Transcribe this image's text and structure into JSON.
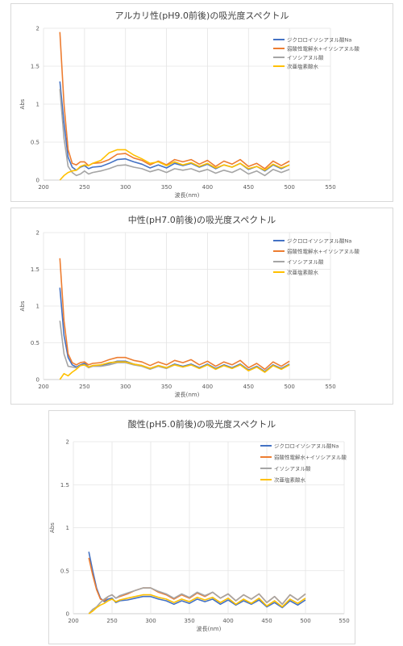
{
  "chart_data": [
    {
      "type": "line",
      "title": "アルカリ性(pH9.0前後)の吸光度スペクトル",
      "xlabel": "波長(nm)",
      "ylabel": "Abs",
      "xlim": [
        200,
        550
      ],
      "ylim": [
        0,
        2
      ],
      "xticks": [
        "200",
        "250",
        "300",
        "350",
        "400",
        "450",
        "500",
        "550"
      ],
      "yticks": [
        "0",
        "0.5",
        "1",
        "1.5",
        "2"
      ],
      "grid": true,
      "legend": "top-right",
      "series": [
        {
          "name": "ジクロロイソシアヌル酸Na",
          "color": "#4472C4",
          "x": [
            220,
            225,
            230,
            235,
            240,
            245,
            250,
            255,
            260,
            270,
            280,
            290,
            300,
            310,
            320,
            330,
            340,
            350,
            360,
            370,
            380,
            390,
            400,
            410,
            420,
            430,
            440,
            450,
            460,
            470,
            480,
            490,
            500
          ],
          "y": [
            1.3,
            0.75,
            0.3,
            0.17,
            0.13,
            0.17,
            0.19,
            0.15,
            0.17,
            0.18,
            0.22,
            0.27,
            0.28,
            0.24,
            0.21,
            0.16,
            0.2,
            0.16,
            0.22,
            0.19,
            0.22,
            0.17,
            0.21,
            0.15,
            0.2,
            0.17,
            0.22,
            0.14,
            0.18,
            0.12,
            0.2,
            0.15,
            0.2
          ]
        },
        {
          "name": "弱酸性電解水+イソシアヌル酸",
          "color": "#ED7D31",
          "x": [
            220,
            225,
            230,
            235,
            240,
            245,
            250,
            255,
            260,
            270,
            280,
            290,
            300,
            310,
            320,
            330,
            340,
            350,
            360,
            370,
            380,
            390,
            400,
            410,
            420,
            430,
            440,
            450,
            460,
            470,
            480,
            490,
            500
          ],
          "y": [
            1.95,
            1.0,
            0.4,
            0.22,
            0.2,
            0.24,
            0.24,
            0.19,
            0.22,
            0.23,
            0.27,
            0.34,
            0.35,
            0.29,
            0.26,
            0.2,
            0.25,
            0.2,
            0.27,
            0.24,
            0.27,
            0.21,
            0.26,
            0.18,
            0.25,
            0.21,
            0.27,
            0.18,
            0.22,
            0.15,
            0.25,
            0.19,
            0.25
          ]
        },
        {
          "name": "イソシアヌル酸",
          "color": "#A5A5A5",
          "x": [
            220,
            225,
            230,
            235,
            240,
            245,
            250,
            255,
            260,
            270,
            280,
            290,
            300,
            310,
            320,
            330,
            340,
            350,
            360,
            370,
            380,
            390,
            400,
            410,
            420,
            430,
            440,
            450,
            460,
            470,
            480,
            490,
            500
          ],
          "y": [
            1.2,
            0.55,
            0.18,
            0.1,
            0.06,
            0.08,
            0.12,
            0.08,
            0.1,
            0.12,
            0.15,
            0.19,
            0.2,
            0.17,
            0.15,
            0.11,
            0.14,
            0.1,
            0.15,
            0.13,
            0.15,
            0.11,
            0.14,
            0.09,
            0.13,
            0.1,
            0.15,
            0.08,
            0.12,
            0.06,
            0.14,
            0.1,
            0.14
          ]
        },
        {
          "name": "次亜塩素酸水",
          "color": "#FFC000",
          "x": [
            220,
            225,
            230,
            235,
            240,
            245,
            250,
            255,
            260,
            270,
            280,
            290,
            300,
            310,
            320,
            330,
            340,
            350,
            360,
            370,
            380,
            390,
            400,
            410,
            420,
            430,
            440,
            450,
            460,
            470,
            480,
            490,
            500
          ],
          "y": [
            0.0,
            0.06,
            0.1,
            0.12,
            0.13,
            0.18,
            0.2,
            0.19,
            0.22,
            0.26,
            0.36,
            0.4,
            0.4,
            0.33,
            0.28,
            0.22,
            0.24,
            0.19,
            0.24,
            0.2,
            0.23,
            0.18,
            0.22,
            0.16,
            0.2,
            0.17,
            0.22,
            0.15,
            0.18,
            0.13,
            0.21,
            0.16,
            0.2
          ]
        }
      ]
    },
    {
      "type": "line",
      "title": "中性(pH7.0前後)の吸光度スペクトル",
      "xlabel": "波長(nm)",
      "ylabel": "Abs",
      "xlim": [
        200,
        550
      ],
      "ylim": [
        0,
        2
      ],
      "xticks": [
        "200",
        "250",
        "300",
        "350",
        "400",
        "450",
        "500",
        "550"
      ],
      "yticks": [
        "0",
        "0.5",
        "1",
        "1.5",
        "2"
      ],
      "grid": true,
      "legend": "top-right",
      "series": [
        {
          "name": "ジクロロイソシアヌル酸Na",
          "color": "#4472C4",
          "x": [
            220,
            225,
            230,
            235,
            240,
            245,
            250,
            255,
            260,
            270,
            280,
            290,
            300,
            310,
            320,
            330,
            340,
            350,
            360,
            370,
            380,
            390,
            400,
            410,
            420,
            430,
            440,
            450,
            460,
            470,
            480,
            490,
            500
          ],
          "y": [
            1.25,
            0.6,
            0.3,
            0.2,
            0.17,
            0.2,
            0.22,
            0.17,
            0.19,
            0.19,
            0.22,
            0.25,
            0.25,
            0.21,
            0.19,
            0.15,
            0.19,
            0.16,
            0.21,
            0.18,
            0.21,
            0.16,
            0.21,
            0.15,
            0.2,
            0.16,
            0.21,
            0.13,
            0.18,
            0.11,
            0.2,
            0.15,
            0.21
          ]
        },
        {
          "name": "弱酸性電解水+イソシアヌル酸",
          "color": "#ED7D31",
          "x": [
            220,
            225,
            230,
            235,
            240,
            245,
            250,
            255,
            260,
            270,
            280,
            290,
            300,
            310,
            320,
            330,
            340,
            350,
            360,
            370,
            380,
            390,
            400,
            410,
            420,
            430,
            440,
            450,
            460,
            470,
            480,
            490,
            500
          ],
          "y": [
            1.65,
            0.8,
            0.35,
            0.23,
            0.2,
            0.23,
            0.24,
            0.2,
            0.22,
            0.23,
            0.27,
            0.3,
            0.3,
            0.26,
            0.24,
            0.19,
            0.24,
            0.2,
            0.26,
            0.23,
            0.27,
            0.2,
            0.25,
            0.18,
            0.24,
            0.2,
            0.26,
            0.16,
            0.22,
            0.14,
            0.24,
            0.18,
            0.25
          ]
        },
        {
          "name": "イソシアヌル酸",
          "color": "#A5A5A5",
          "x": [
            220,
            225,
            230,
            235,
            240,
            245,
            250,
            255,
            260,
            270,
            280,
            290,
            300,
            310,
            320,
            330,
            340,
            350,
            360,
            370,
            380,
            390,
            400,
            410,
            420,
            430,
            440,
            450,
            460,
            470,
            480,
            490,
            500
          ],
          "y": [
            0.8,
            0.35,
            0.18,
            0.17,
            0.16,
            0.19,
            0.2,
            0.16,
            0.18,
            0.18,
            0.2,
            0.23,
            0.23,
            0.2,
            0.18,
            0.14,
            0.18,
            0.15,
            0.2,
            0.17,
            0.2,
            0.15,
            0.2,
            0.14,
            0.19,
            0.15,
            0.2,
            0.12,
            0.17,
            0.1,
            0.19,
            0.14,
            0.2
          ]
        },
        {
          "name": "次亜塩素酸水",
          "color": "#FFC000",
          "x": [
            220,
            225,
            230,
            235,
            240,
            245,
            250,
            255,
            260,
            270,
            280,
            290,
            300,
            310,
            320,
            330,
            340,
            350,
            360,
            370,
            380,
            390,
            400,
            410,
            420,
            430,
            440,
            450,
            460,
            470,
            480,
            490,
            500
          ],
          "y": [
            0.0,
            0.08,
            0.05,
            0.1,
            0.14,
            0.19,
            0.2,
            0.17,
            0.19,
            0.2,
            0.23,
            0.24,
            0.24,
            0.21,
            0.19,
            0.15,
            0.19,
            0.16,
            0.2,
            0.17,
            0.2,
            0.15,
            0.2,
            0.14,
            0.19,
            0.15,
            0.2,
            0.12,
            0.17,
            0.1,
            0.19,
            0.14,
            0.2
          ]
        }
      ]
    },
    {
      "type": "line",
      "title": "酸性(pH5.0前後)の吸光度スペクトル",
      "xlabel": "波長(nm)",
      "ylabel": "Abs",
      "xlim": [
        200,
        550
      ],
      "ylim": [
        0,
        2
      ],
      "xticks": [
        "200",
        "250",
        "300",
        "350",
        "400",
        "450",
        "500",
        "550"
      ],
      "yticks": [
        "0",
        "0.5",
        "1",
        "1.5",
        "2"
      ],
      "grid": true,
      "legend": "top-right",
      "series": [
        {
          "name": "ジクロロイソシアヌル酸Na",
          "color": "#4472C4",
          "x": [
            220,
            225,
            230,
            235,
            240,
            245,
            250,
            255,
            260,
            270,
            280,
            290,
            300,
            310,
            320,
            330,
            340,
            350,
            360,
            370,
            380,
            390,
            400,
            410,
            420,
            430,
            440,
            450,
            460,
            470,
            480,
            490,
            500
          ],
          "y": [
            0.72,
            0.5,
            0.3,
            0.18,
            0.14,
            0.17,
            0.18,
            0.13,
            0.15,
            0.16,
            0.18,
            0.2,
            0.2,
            0.17,
            0.15,
            0.11,
            0.15,
            0.12,
            0.17,
            0.14,
            0.17,
            0.11,
            0.16,
            0.1,
            0.15,
            0.11,
            0.16,
            0.08,
            0.13,
            0.07,
            0.15,
            0.1,
            0.16
          ]
        },
        {
          "name": "弱酸性電解水+イソシアヌル酸",
          "color": "#ED7D31",
          "x": [
            220,
            225,
            230,
            235,
            240,
            245,
            250,
            255,
            260,
            270,
            280,
            290,
            300,
            310,
            320,
            330,
            340,
            350,
            360,
            370,
            380,
            390,
            400,
            410,
            420,
            430,
            440,
            450,
            460,
            470,
            480,
            490,
            500
          ],
          "y": [
            0.65,
            0.45,
            0.28,
            0.17,
            0.15,
            0.2,
            0.22,
            0.18,
            0.2,
            0.23,
            0.27,
            0.3,
            0.3,
            0.25,
            0.22,
            0.17,
            0.22,
            0.18,
            0.24,
            0.2,
            0.25,
            0.18,
            0.23,
            0.15,
            0.22,
            0.17,
            0.23,
            0.13,
            0.2,
            0.11,
            0.22,
            0.16,
            0.23
          ]
        },
        {
          "name": "イソシアヌル酸",
          "color": "#A5A5A5",
          "x": [
            220,
            225,
            230,
            235,
            240,
            245,
            250,
            255,
            260,
            270,
            280,
            290,
            300,
            310,
            320,
            330,
            340,
            350,
            360,
            370,
            380,
            390,
            400,
            410,
            420,
            430,
            440,
            450,
            460,
            470,
            480,
            490,
            500
          ],
          "y": [
            0.0,
            0.05,
            0.08,
            0.13,
            0.17,
            0.2,
            0.22,
            0.18,
            0.21,
            0.24,
            0.27,
            0.3,
            0.3,
            0.26,
            0.23,
            0.18,
            0.23,
            0.19,
            0.25,
            0.21,
            0.25,
            0.18,
            0.23,
            0.15,
            0.22,
            0.17,
            0.23,
            0.13,
            0.2,
            0.11,
            0.22,
            0.16,
            0.23
          ]
        },
        {
          "name": "次亜塩素酸水",
          "color": "#FFC000",
          "x": [
            220,
            225,
            230,
            235,
            240,
            245,
            250,
            255,
            260,
            270,
            280,
            290,
            300,
            310,
            320,
            330,
            340,
            350,
            360,
            370,
            380,
            390,
            400,
            410,
            420,
            430,
            440,
            450,
            460,
            470,
            480,
            490,
            500
          ],
          "y": [
            0.0,
            0.03,
            0.07,
            0.1,
            0.12,
            0.15,
            0.17,
            0.14,
            0.16,
            0.18,
            0.2,
            0.22,
            0.22,
            0.19,
            0.17,
            0.13,
            0.17,
            0.14,
            0.19,
            0.16,
            0.19,
            0.13,
            0.18,
            0.11,
            0.17,
            0.12,
            0.18,
            0.09,
            0.15,
            0.08,
            0.17,
            0.12,
            0.18
          ]
        }
      ]
    }
  ]
}
